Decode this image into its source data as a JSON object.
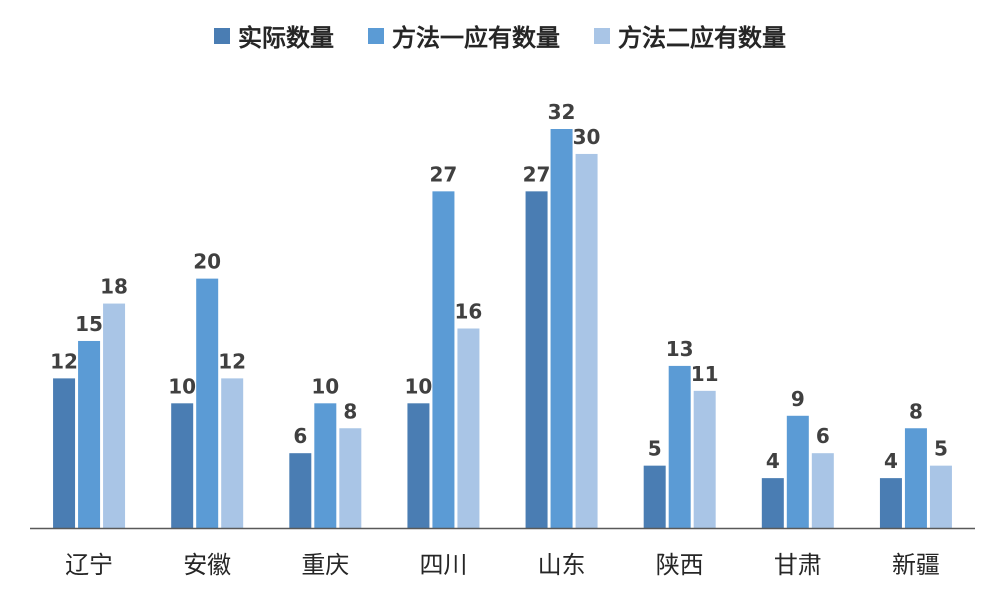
{
  "chart_data": {
    "type": "bar",
    "categories": [
      "辽宁",
      "安徽",
      "重庆",
      "四川",
      "山东",
      "陕西",
      "甘肃",
      "新疆"
    ],
    "series": [
      {
        "name": "实际数量",
        "color": "#4A7DB3",
        "values": [
          12,
          10,
          6,
          10,
          27,
          5,
          4,
          4
        ]
      },
      {
        "name": "方法一应有数量",
        "color": "#5B9BD5",
        "values": [
          15,
          20,
          10,
          27,
          32,
          13,
          9,
          8
        ]
      },
      {
        "name": "方法二应有数量",
        "color": "#A9C5E6",
        "values": [
          18,
          12,
          8,
          16,
          30,
          11,
          6,
          5
        ]
      }
    ],
    "ylim": [
      0,
      32
    ],
    "grid": false,
    "legend_position": "top-center",
    "data_labels": true
  }
}
